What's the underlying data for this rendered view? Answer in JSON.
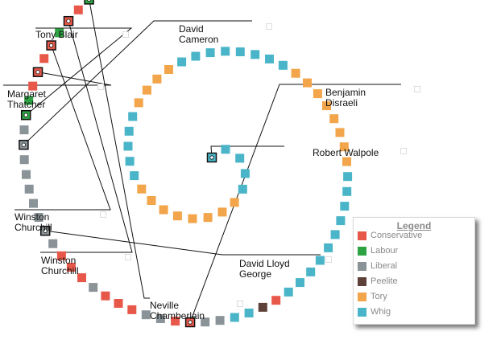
{
  "parties": {
    "conservative": {
      "label": "Conservative",
      "color": "#e8584a"
    },
    "labour": {
      "label": "Labour",
      "color": "#2ea343"
    },
    "liberal": {
      "label": "Liberal",
      "color": "#8a9397"
    },
    "peelite": {
      "label": "Peelite",
      "color": "#5d4037"
    },
    "tory": {
      "label": "Tory",
      "color": "#f2a54a"
    },
    "whig": {
      "label": "Whig",
      "color": "#4ab5c8"
    }
  },
  "legend": {
    "title": "Legend",
    "order": [
      "conservative",
      "labour",
      "liberal",
      "peelite",
      "tory",
      "whig"
    ]
  },
  "spiral_sequence": [
    "whig",
    "whig",
    "whig",
    "whig",
    "whig",
    "tory",
    "tory",
    "tory",
    "tory",
    "tory",
    "tory",
    "tory",
    "tory",
    "whig",
    "whig",
    "whig",
    "whig",
    "whig",
    "tory",
    "tory",
    "tory",
    "tory",
    "whig",
    "whig",
    "whig",
    "whig",
    "whig",
    "whig",
    "whig",
    "whig",
    "tory",
    "tory",
    "tory",
    "tory",
    "tory",
    "tory",
    "tory",
    "tory",
    "whig",
    "whig",
    "whig",
    "whig",
    "whig",
    "whig",
    "whig",
    "whig",
    "whig",
    "whig",
    "conservative",
    "peelite",
    "whig",
    "whig",
    "liberal",
    "liberal",
    "conservative",
    "conservative",
    "liberal",
    "liberal",
    "conservative",
    "conservative",
    "conservative",
    "liberal",
    "conservative",
    "conservative",
    "conservative",
    "liberal",
    "liberal",
    "liberal",
    "liberal",
    "liberal",
    "liberal",
    "liberal",
    "liberal",
    "liberal",
    "labour",
    "labour",
    "conservative",
    "conservative",
    "conservative",
    "conservative",
    "labour",
    "conservative",
    "conservative",
    "labour",
    "conservative",
    "conservative",
    "labour",
    "conservative",
    "labour",
    "conservative",
    "conservative",
    "labour",
    "conservative",
    "labour",
    "labour",
    "conservative"
  ],
  "annotations": [
    {
      "id": "tony-blair",
      "text": "Tony Blair"
    },
    {
      "id": "david-cameron",
      "text": "David\nCameron"
    },
    {
      "id": "margaret-thatcher",
      "text": "Margaret\nThatcher"
    },
    {
      "id": "benjamin-disraeli",
      "text": "Benjamin\nDisraeli"
    },
    {
      "id": "robert-walpole",
      "text": "Robert Walpole"
    },
    {
      "id": "winston-churchill-1",
      "text": "Winston\nChurchill"
    },
    {
      "id": "winston-churchill-2",
      "text": "Winston\nChurchill"
    },
    {
      "id": "david-lloyd-george",
      "text": "David Lloyd\nGeorge"
    },
    {
      "id": "neville-chamberlain",
      "text": "Neville\nChamberlain"
    }
  ]
}
